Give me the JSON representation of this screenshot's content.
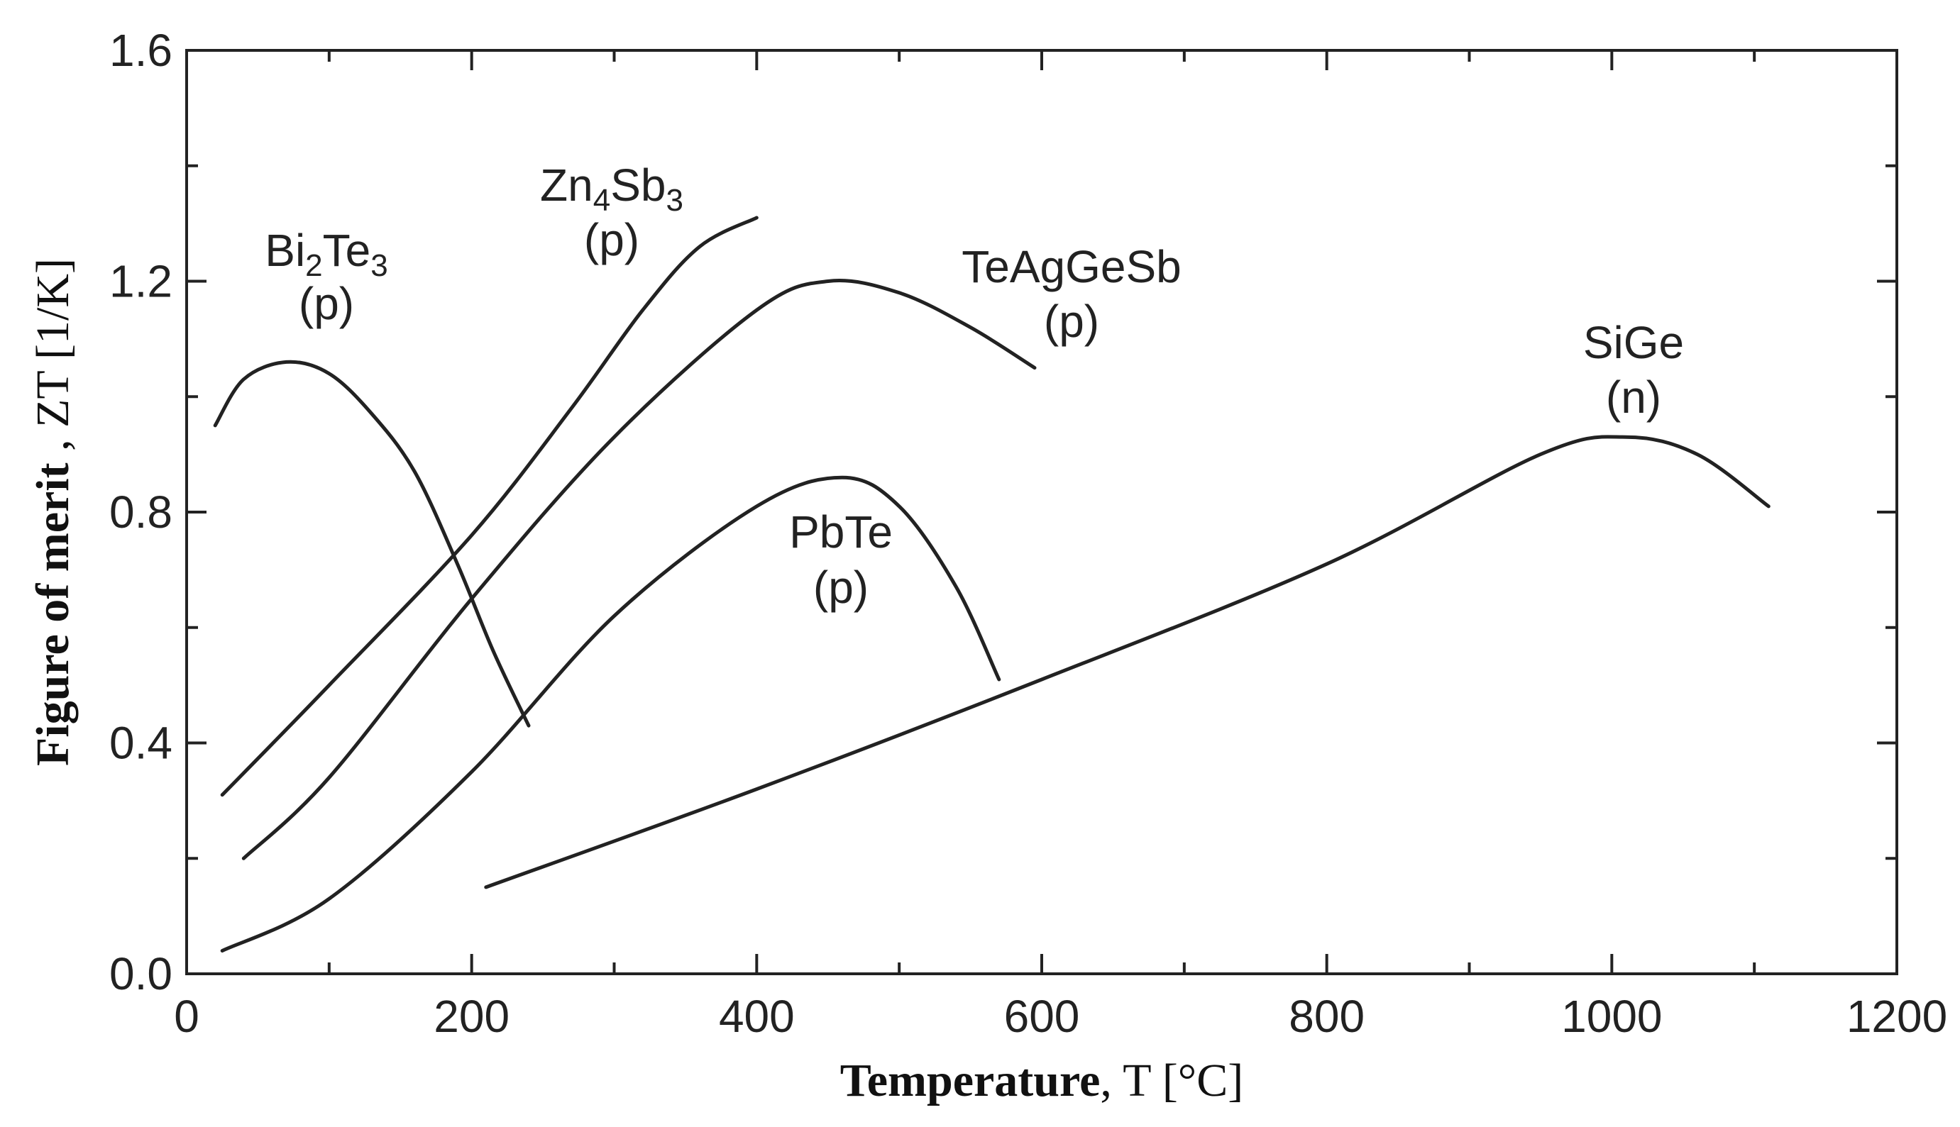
{
  "chart_data": {
    "type": "line",
    "title": "",
    "xlabel": "Temperature",
    "xlabel_unit": ", T [°C]",
    "ylabel": "Figure of merit",
    "ylabel_unit": " , ZT [1/K]",
    "xlim": [
      0,
      1200
    ],
    "ylim": [
      0.0,
      1.6
    ],
    "xticks": [
      "0",
      "200",
      "400",
      "600",
      "800",
      "1000",
      "1200"
    ],
    "xtick_values": [
      0,
      200,
      400,
      600,
      800,
      1000,
      1200
    ],
    "xminor_step": 100,
    "yticks": [
      "0.0",
      "0.4",
      "0.8",
      "1.2",
      "1.6"
    ],
    "ytick_values": [
      0.0,
      0.4,
      0.8,
      1.2,
      1.6
    ],
    "yminor_step": 0.2,
    "grid": false,
    "line_color": "#222222",
    "series": [
      {
        "name": "Bi2Te3",
        "base": "Bi",
        "sub1": "2",
        "mid": "Te",
        "sub2": "3",
        "type_label": "(p)",
        "x": [
          20,
          40,
          70,
          100,
          130,
          160,
          190,
          215,
          240
        ],
        "y": [
          0.95,
          1.03,
          1.06,
          1.04,
          0.97,
          0.87,
          0.71,
          0.56,
          0.43
        ]
      },
      {
        "name": "Zn4Sb3",
        "base": "Zn",
        "sub1": "4",
        "mid": "Sb",
        "sub2": "3",
        "type_label": "(p)",
        "x": [
          25,
          100,
          200,
          270,
          320,
          360,
          400
        ],
        "y": [
          0.31,
          0.5,
          0.76,
          0.98,
          1.15,
          1.26,
          1.31
        ]
      },
      {
        "name": "TeAgGeSb",
        "base": "TeAgGeSb",
        "sub1": "",
        "mid": "",
        "sub2": "",
        "type_label": "(p)",
        "x": [
          40,
          100,
          200,
          300,
          400,
          450,
          500,
          550,
          595
        ],
        "y": [
          0.2,
          0.34,
          0.65,
          0.93,
          1.15,
          1.2,
          1.18,
          1.12,
          1.05
        ]
      },
      {
        "name": "PbTe",
        "base": "PbTe",
        "sub1": "",
        "mid": "",
        "sub2": "",
        "type_label": "(p)",
        "x": [
          25,
          100,
          200,
          300,
          400,
          460,
          500,
          540,
          570
        ],
        "y": [
          0.04,
          0.13,
          0.35,
          0.62,
          0.81,
          0.86,
          0.81,
          0.67,
          0.51
        ]
      },
      {
        "name": "SiGe",
        "base": "SiGe",
        "sub1": "",
        "mid": "",
        "sub2": "",
        "type_label": "(n)",
        "x": [
          210,
          400,
          600,
          800,
          950,
          1010,
          1060,
          1110
        ],
        "y": [
          0.15,
          0.32,
          0.51,
          0.71,
          0.9,
          0.93,
          0.9,
          0.81
        ]
      }
    ]
  }
}
